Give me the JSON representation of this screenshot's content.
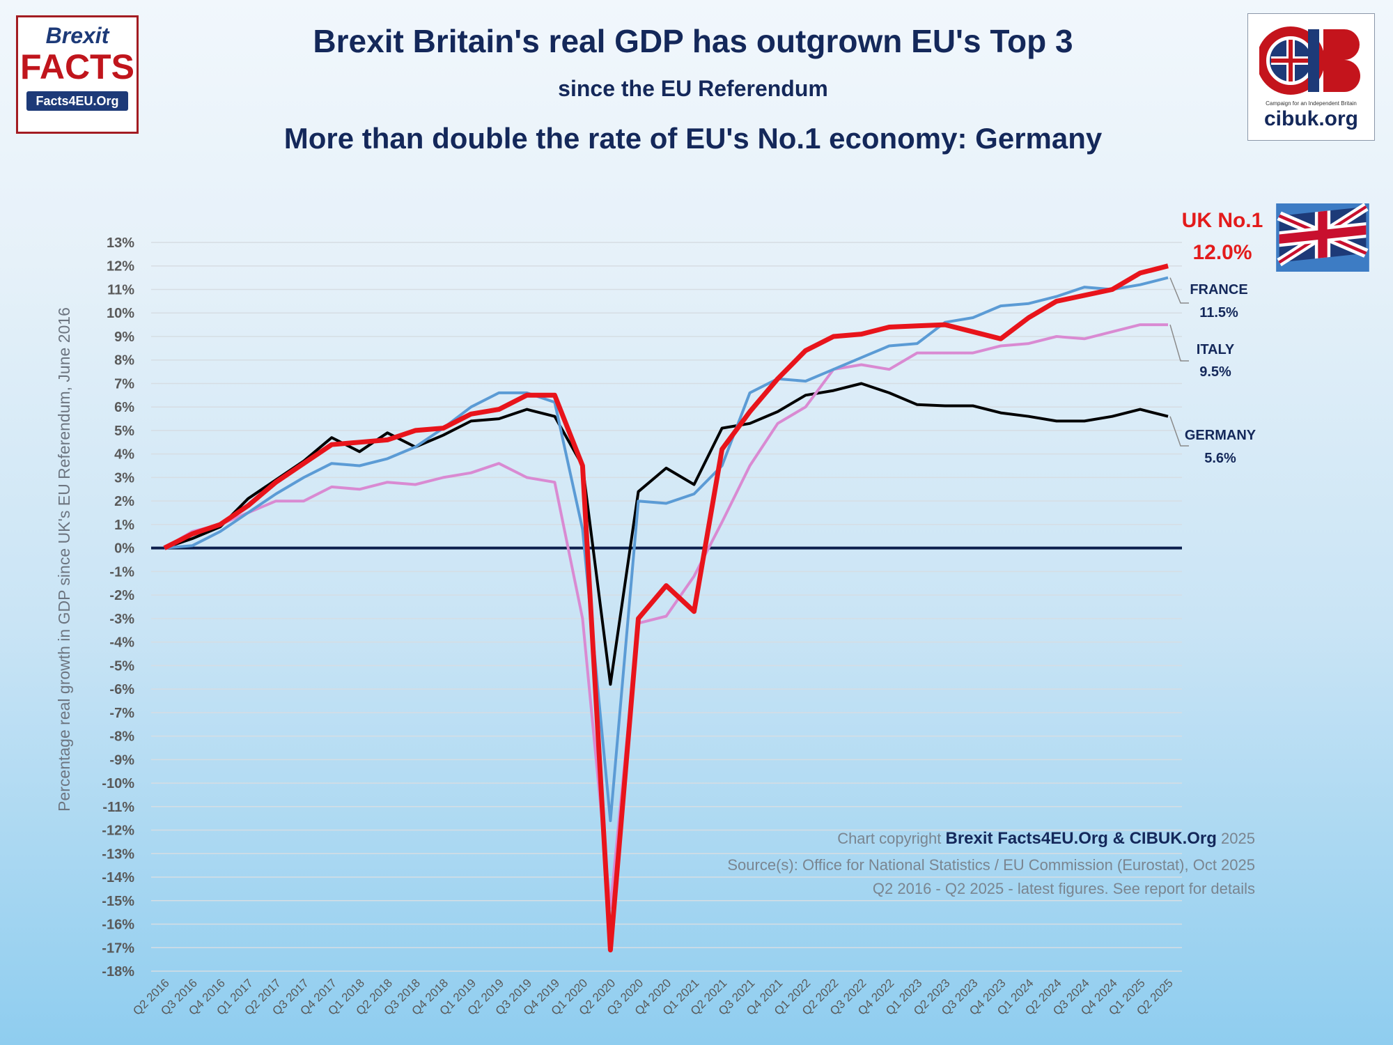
{
  "header": {
    "title": "Brexit Britain's real GDP has outgrown EU's Top 3",
    "subtitle": "since the EU Referendum",
    "headline": "More than double the rate of EU's No.1 economy: Germany"
  },
  "logos": {
    "left": {
      "line1": "Brexit",
      "line2": "FACTS",
      "line3": "Facts4EU.Org"
    },
    "right": {
      "caption": "Campaign for an Independent Britain",
      "url": "cibuk.org"
    }
  },
  "end_labels": {
    "uk": {
      "name": "UK No.1",
      "value": "12.0%"
    },
    "france": {
      "name": "FRANCE",
      "value": "11.5%"
    },
    "italy": {
      "name": "ITALY",
      "value": "9.5%"
    },
    "germany": {
      "name": "GERMANY",
      "value": "5.6%"
    }
  },
  "footer": {
    "copyright_prefix": "Chart copyright",
    "copyright_owner": "Brexit Facts4EU.Org & CIBUK.Org",
    "copyright_year": "2025",
    "source": "Source(s): Office for National Statistics  / EU Commission (Eurostat), Oct 2025",
    "note": "Q2 2016 - Q2 2025 - latest figures. See report for details"
  },
  "colors": {
    "uk": "#e8141b",
    "france": "#5b9bd5",
    "germany": "#000000",
    "italy": "#d98ad2",
    "zero_line": "#0d1f4d",
    "grid": "#d6dde3",
    "text": "#14285a"
  },
  "chart_data": {
    "type": "line",
    "title": "Brexit Britain's real GDP has outgrown EU's Top 3",
    "ylabel": "Percentage real growth in GDP since UK's EU Referendum, June 2016",
    "xlabel": "",
    "ylim": [
      -18,
      13
    ],
    "grid": true,
    "y_ticks": [
      "13%",
      "12%",
      "11%",
      "10%",
      "9%",
      "8%",
      "7%",
      "6%",
      "5%",
      "4%",
      "3%",
      "2%",
      "1%",
      "0%",
      "-1%",
      "-2%",
      "-3%",
      "-4%",
      "-5%",
      "-6%",
      "-7%",
      "-8%",
      "-9%",
      "-10%",
      "-11%",
      "-12%",
      "-13%",
      "-14%",
      "-15%",
      "-16%",
      "-17%",
      "-18%"
    ],
    "categories": [
      "Q2 2016",
      "Q3 2016",
      "Q4 2016",
      "Q1 2017",
      "Q2 2017",
      "Q3 2017",
      "Q4 2017",
      "Q1 2018",
      "Q2 2018",
      "Q3 2018",
      "Q4 2018",
      "Q1 2019",
      "Q2 2019",
      "Q3 2019",
      "Q4 2019",
      "Q1 2020",
      "Q2 2020",
      "Q3 2020",
      "Q4 2020",
      "Q1 2021",
      "Q2 2021",
      "Q3 2021",
      "Q4 2021",
      "Q1 2022",
      "Q2 2022",
      "Q3 2022",
      "Q4 2022",
      "Q1 2023",
      "Q2 2023",
      "Q3 2023",
      "Q4 2023",
      "Q1 2024",
      "Q2 2024",
      "Q3 2024",
      "Q4 2024",
      "Q1 2025",
      "Q2 2025"
    ],
    "series": [
      {
        "name": "GERMANY",
        "color": "#000000",
        "values": [
          0,
          0.4,
          0.9,
          2.1,
          2.9,
          3.7,
          4.7,
          4.1,
          4.9,
          4.3,
          4.8,
          5.4,
          5.5,
          5.9,
          5.6,
          3.5,
          -5.8,
          2.4,
          3.4,
          2.7,
          5.1,
          5.3,
          5.8,
          6.5,
          6.7,
          7.0,
          6.6,
          6.1,
          6.05,
          6.05,
          5.75,
          5.6,
          5.4,
          5.4,
          5.6,
          5.9,
          5.6
        ]
      },
      {
        "name": "ITALY",
        "color": "#d98ad2",
        "values": [
          0,
          0.7,
          1.0,
          1.5,
          2.0,
          2.0,
          2.6,
          2.5,
          2.8,
          2.7,
          3.0,
          3.2,
          3.6,
          3.0,
          2.8,
          -3.0,
          -15.3,
          -3.2,
          -2.9,
          -1.2,
          1.1,
          3.5,
          5.3,
          6.0,
          7.6,
          7.8,
          7.6,
          8.3,
          8.3,
          8.3,
          8.6,
          8.7,
          9.0,
          8.9,
          9.2,
          9.5,
          9.5
        ]
      },
      {
        "name": "FRANCE",
        "color": "#5b9bd5",
        "values": [
          0,
          0.1,
          0.7,
          1.5,
          2.3,
          3.0,
          3.6,
          3.5,
          3.8,
          4.3,
          5.1,
          6.0,
          6.6,
          6.6,
          6.2,
          0.8,
          -11.6,
          2.0,
          1.9,
          2.3,
          3.5,
          6.6,
          7.2,
          7.1,
          7.6,
          8.1,
          8.6,
          8.7,
          9.6,
          9.8,
          10.3,
          10.4,
          10.7,
          11.1,
          11.0,
          11.2,
          11.5
        ]
      },
      {
        "name": "UK",
        "color": "#e8141b",
        "values": [
          0,
          0.6,
          1.0,
          1.8,
          2.8,
          3.6,
          4.4,
          4.5,
          4.6,
          5.0,
          5.1,
          5.7,
          5.9,
          6.5,
          6.5,
          3.5,
          -17.1,
          -3.0,
          -1.6,
          -2.7,
          4.2,
          5.8,
          7.2,
          8.4,
          9.0,
          9.1,
          9.4,
          9.45,
          9.5,
          9.2,
          8.9,
          9.8,
          10.5,
          10.75,
          11.0,
          11.7,
          12.0
        ]
      }
    ]
  }
}
